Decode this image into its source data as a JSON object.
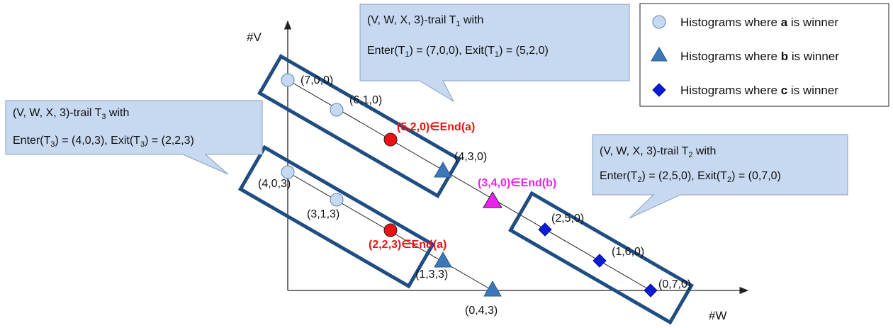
{
  "axes": {
    "x_label": "#W",
    "y_label": "#V"
  },
  "colors": {
    "a_fill": "#c6d9f1",
    "a_stroke": "#5b82b6",
    "b_fill": "#3c78b9",
    "b_stroke": "#2a5a8e",
    "c_fill": "#0b1cd6",
    "c_stroke": "#08108a",
    "end_a": "#ee1111",
    "end_b": "#ee22ee",
    "trail_box": "#1f4d82",
    "callout_fill": "#c6d9f1",
    "callout_stroke": "#8a9fbd"
  },
  "legend": {
    "a": {
      "prefix": "Histograms where ",
      "bold": "a",
      "suffix": " is winner",
      "marker": "circle-icon"
    },
    "b": {
      "prefix": "Histograms where ",
      "bold": "b",
      "suffix": " is winner",
      "marker": "triangle-icon"
    },
    "c": {
      "prefix": "Histograms where ",
      "bold": "c",
      "suffix": " is winner",
      "marker": "diamond-icon"
    }
  },
  "points": {
    "p700": "(7,0,0)",
    "p610": "(6,1,0)",
    "p520": "(5,2,0)",
    "p430": "(4,3,0)",
    "p340": "(3,4,0)",
    "p250": "(2,5,0)",
    "p160": "(1,6,0)",
    "p070": "(0,7,0)",
    "p403": "(4,0,3)",
    "p313": "(3,1,3)",
    "p223": "(2,2,3)",
    "p133": "(1,3,3)",
    "p043": "(0,4,3)"
  },
  "end_labels": {
    "p520": "∈End(a)",
    "p340": "∈End(b)",
    "p223": "∈End(a)"
  },
  "callouts": {
    "t1": {
      "line1": "(V, W, X, 3)-trail T",
      "sub": "1",
      "line1_suffix": " with",
      "enter_pre": "Enter(T",
      "enter_sub": "1",
      "enter_val": ") = (7,0,0), Exit(T",
      "exit_sub": "1",
      "exit_val": ") = (5,2,0)"
    },
    "t2": {
      "line1": "(V, W, X, 3)-trail T",
      "sub": "2",
      "line1_suffix": " with",
      "enter_pre": "Enter(T",
      "enter_sub": "2",
      "enter_val": ") = (2,5,0), Exit(T",
      "exit_sub": "2",
      "exit_val": ") = (0,7,0)"
    },
    "t3": {
      "line1": "(V, W, X, 3)-trail T",
      "sub": "3",
      "line1_suffix": " with",
      "enter_pre": "Enter(T",
      "enter_sub": "3",
      "enter_val": ") = (4,0,3), Exit(T",
      "exit_sub": "3",
      "exit_val": ") = (2,2,3)"
    }
  }
}
